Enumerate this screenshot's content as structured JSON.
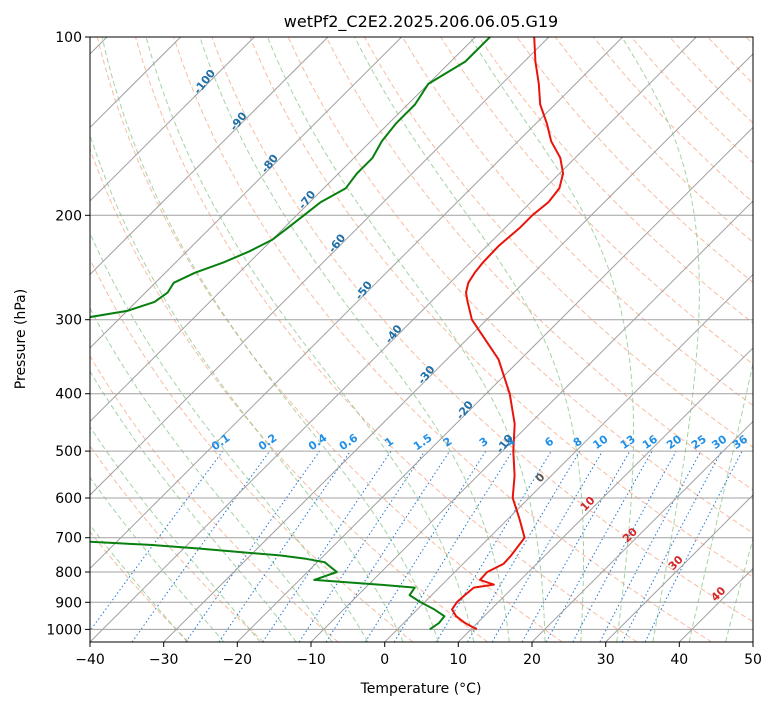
{
  "chart_data": {
    "type": "line",
    "title": "wetPf2_C2E2.2025.206.06.05.G19",
    "xlabel": "Temperature (°C)",
    "ylabel": "Pressure (hPa)",
    "xlim": [
      -40,
      50
    ],
    "ylim": [
      1050,
      100
    ],
    "y_scale": "log",
    "x_ticks": [
      "-40",
      "-30",
      "-20",
      "-10",
      "0",
      "10",
      "20",
      "30",
      "40",
      "50"
    ],
    "y_ticks": [
      "100",
      "200",
      "300",
      "400",
      "500",
      "600",
      "700",
      "800",
      "900",
      "1000"
    ],
    "grid": true,
    "skew": 35,
    "series": [
      {
        "color": "#e8140c",
        "p": [
          1000,
          975,
          950,
          925,
          900,
          875,
          850,
          840,
          825,
          800,
          775,
          750,
          700,
          650,
          600,
          550,
          500,
          450,
          400,
          350,
          300,
          280,
          270,
          260,
          250,
          240,
          225,
          210,
          200,
          190,
          180,
          170,
          160,
          150,
          140,
          130,
          120,
          110,
          100
        ],
        "t": [
          10.8,
          8.3,
          6.2,
          4.7,
          4.4,
          4.5,
          4.7,
          7.0,
          4.5,
          4.4,
          5.5,
          5.4,
          4.8,
          1.5,
          -2.2,
          -5.0,
          -8.5,
          -12.0,
          -16.8,
          -23.0,
          -32.0,
          -35.0,
          -36.5,
          -37.5,
          -38.0,
          -38.3,
          -38.4,
          -38.0,
          -38.0,
          -37.6,
          -38.0,
          -39.5,
          -42.0,
          -45.5,
          -48.5,
          -52.0,
          -55.0,
          -58.5,
          -62.0
        ]
      },
      {
        "color": "#08800f",
        "p": [
          1000,
          975,
          950,
          925,
          900,
          875,
          850,
          840,
          825,
          800,
          790,
          780,
          770,
          760,
          750,
          740,
          730,
          720,
          710,
          700,
          650,
          600,
          550,
          500,
          450,
          400,
          350,
          320,
          310,
          300,
          290,
          280,
          270,
          260,
          250,
          240,
          230,
          220,
          210,
          200,
          190,
          180,
          170,
          160,
          150,
          140,
          130,
          120,
          110,
          100
        ],
        "t": [
          4.4,
          4.8,
          4.6,
          2.3,
          -0.5,
          -3.0,
          -3.3,
          -8.6,
          -18.0,
          -16.0,
          -17.0,
          -18.0,
          -19.0,
          -22.0,
          -26.0,
          -32.0,
          -38.0,
          -45.0,
          -55.0,
          -66.0,
          -74.0,
          -80.0,
          -85.0,
          -88.5,
          -91.0,
          -93.0,
          -94.0,
          -95.0,
          -95.0,
          -86.0,
          -80.0,
          -77.5,
          -77.0,
          -77.5,
          -76.0,
          -73.5,
          -71.5,
          -70.0,
          -69.5,
          -69.0,
          -68.5,
          -67.0,
          -67.5,
          -67.5,
          -68.5,
          -69.0,
          -69.0,
          -70.0,
          -68.0,
          -68.0
        ]
      }
    ],
    "isotherm_labels": [
      "-100",
      "-90",
      "-80",
      "-70",
      "-60",
      "-50",
      "-40",
      "-30",
      "-20",
      "-10"
    ],
    "mixing_ratio_labels": [
      "0.1",
      "0.2",
      "0.4",
      "0.6",
      "1",
      "1.5",
      "2",
      "3",
      "4",
      "6",
      "8",
      "10",
      "13",
      "16",
      "20",
      "25",
      "30",
      "36"
    ],
    "moist_adiabat_labels": [
      "0",
      "10",
      "20",
      "30",
      "40"
    ]
  }
}
